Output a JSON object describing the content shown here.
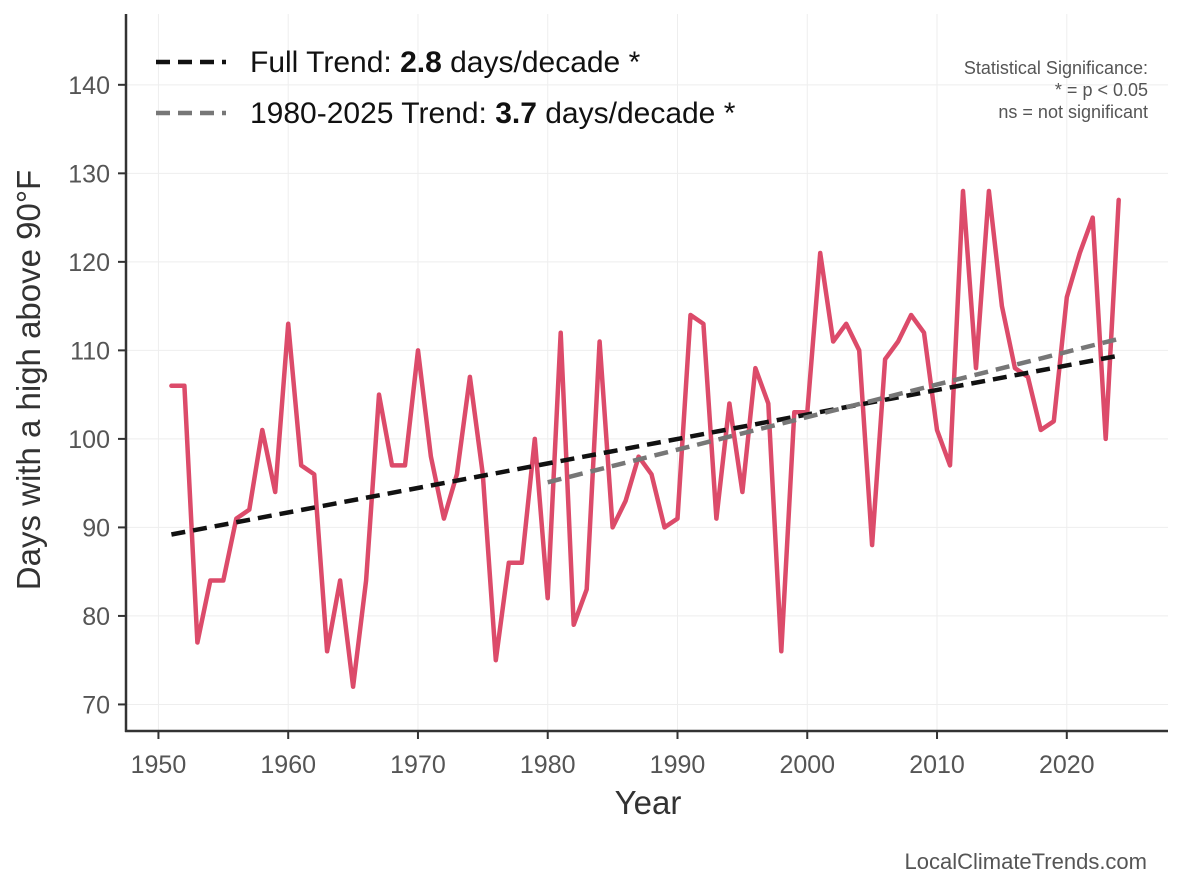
{
  "chart_data": {
    "type": "line",
    "xlabel": "Year",
    "ylabel": "Days with a high above 90°F",
    "xlim": [
      1947.5,
      2027.8
    ],
    "ylim": [
      67,
      148
    ],
    "x_ticks": [
      1950,
      1960,
      1970,
      1980,
      1990,
      2000,
      2010,
      2020
    ],
    "y_ticks": [
      70,
      80,
      90,
      100,
      110,
      120,
      130,
      140
    ],
    "grid": true,
    "legend_position": "top-left",
    "series": [
      {
        "color": "#dc4b6a",
        "x": [
          1951,
          1952,
          1953,
          1954,
          1955,
          1956,
          1957,
          1958,
          1959,
          1960,
          1961,
          1962,
          1963,
          1964,
          1965,
          1966,
          1967,
          1968,
          1969,
          1970,
          1971,
          1972,
          1973,
          1974,
          1975,
          1976,
          1977,
          1978,
          1979,
          1980,
          1981,
          1982,
          1983,
          1984,
          1985,
          1986,
          1987,
          1988,
          1989,
          1990,
          1991,
          1992,
          1993,
          1994,
          1995,
          1996,
          1997,
          1998,
          1999,
          2000,
          2001,
          2002,
          2003,
          2004,
          2005,
          2006,
          2007,
          2008,
          2009,
          2010,
          2011,
          2012,
          2013,
          2014,
          2015,
          2016,
          2017,
          2018,
          2019,
          2020,
          2021,
          2022,
          2023,
          2024
        ],
        "values": [
          106,
          106,
          77,
          84,
          84,
          91,
          92,
          101,
          94,
          113,
          97,
          96,
          76,
          84,
          72,
          84,
          105,
          97,
          97,
          110,
          98,
          91,
          96,
          107,
          96,
          75,
          86,
          86,
          100,
          82,
          112,
          79,
          83,
          111,
          90,
          93,
          98,
          96,
          90,
          91,
          114,
          113,
          91,
          104,
          94,
          108,
          104,
          76,
          103,
          103,
          121,
          111,
          113,
          110,
          88,
          109,
          111,
          114,
          112,
          101,
          97,
          128,
          108,
          128,
          115,
          108,
          107,
          101,
          102,
          116,
          121,
          125,
          100,
          127
        ]
      }
    ],
    "trends": [
      {
        "label_prefix": "Full Trend: ",
        "rate": "2.8",
        "label_suffix": " days/decade *",
        "color": "#111111",
        "x": [
          1951,
          2024
        ],
        "values": [
          89.2,
          109.4
        ]
      },
      {
        "label_prefix": "1980-2025 Trend: ",
        "rate": "3.7",
        "label_suffix": " days/decade *",
        "color": "#777777",
        "x": [
          1980,
          2024
        ],
        "values": [
          95.1,
          111.3
        ]
      }
    ],
    "annotations": {
      "significance_title": "Statistical Significance:",
      "significance_line1": "* = p < 0.05",
      "significance_line2": "ns = not significant",
      "credit": "LocalClimateTrends.com"
    }
  }
}
